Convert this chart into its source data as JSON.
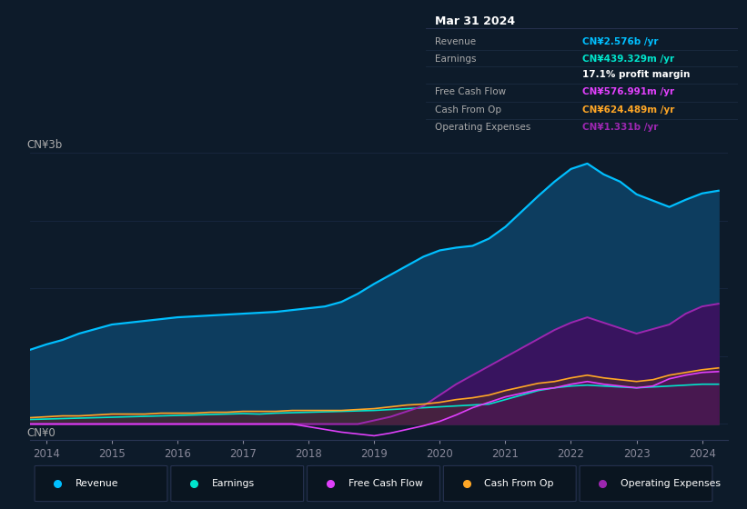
{
  "bg_color": "#0d1b2a",
  "title": "Mar 31 2024",
  "ylabel_top": "CN¥3b",
  "ylabel_bottom": "CN¥0",
  "x_ticks": [
    2014,
    2015,
    2016,
    2017,
    2018,
    2019,
    2020,
    2021,
    2022,
    2023,
    2024
  ],
  "legend": [
    {
      "label": "Revenue",
      "color": "#00bfff"
    },
    {
      "label": "Earnings",
      "color": "#00e5cc"
    },
    {
      "label": "Free Cash Flow",
      "color": "#e040fb"
    },
    {
      "label": "Cash From Op",
      "color": "#ffa726"
    },
    {
      "label": "Operating Expenses",
      "color": "#9c27b0"
    }
  ],
  "years": [
    2013.75,
    2014.0,
    2014.25,
    2014.5,
    2014.75,
    2015.0,
    2015.25,
    2015.5,
    2015.75,
    2016.0,
    2016.25,
    2016.5,
    2016.75,
    2017.0,
    2017.25,
    2017.5,
    2017.75,
    2018.0,
    2018.25,
    2018.5,
    2018.75,
    2019.0,
    2019.25,
    2019.5,
    2019.75,
    2020.0,
    2020.25,
    2020.5,
    2020.75,
    2021.0,
    2021.25,
    2021.5,
    2021.75,
    2022.0,
    2022.25,
    2022.5,
    2022.75,
    2023.0,
    2023.25,
    2023.5,
    2023.75,
    2024.0,
    2024.25
  ],
  "revenue": [
    0.82,
    0.88,
    0.93,
    1.0,
    1.05,
    1.1,
    1.12,
    1.14,
    1.16,
    1.18,
    1.19,
    1.2,
    1.21,
    1.22,
    1.23,
    1.24,
    1.26,
    1.28,
    1.3,
    1.35,
    1.44,
    1.55,
    1.65,
    1.75,
    1.85,
    1.92,
    1.95,
    1.97,
    2.05,
    2.18,
    2.35,
    2.52,
    2.68,
    2.82,
    2.88,
    2.76,
    2.68,
    2.54,
    2.47,
    2.4,
    2.48,
    2.55,
    2.58
  ],
  "earnings": [
    0.05,
    0.055,
    0.06,
    0.065,
    0.07,
    0.075,
    0.08,
    0.085,
    0.09,
    0.095,
    0.1,
    0.105,
    0.11,
    0.115,
    0.11,
    0.12,
    0.125,
    0.13,
    0.135,
    0.14,
    0.145,
    0.15,
    0.16,
    0.17,
    0.18,
    0.19,
    0.2,
    0.21,
    0.22,
    0.27,
    0.32,
    0.37,
    0.4,
    0.42,
    0.43,
    0.42,
    0.41,
    0.4,
    0.41,
    0.42,
    0.43,
    0.44,
    0.44
  ],
  "free_cash_flow": [
    0.0,
    0.0,
    0.0,
    0.0,
    0.0,
    0.0,
    0.0,
    0.0,
    0.0,
    0.0,
    0.0,
    0.0,
    0.0,
    0.0,
    0.0,
    0.0,
    0.0,
    -0.03,
    -0.06,
    -0.09,
    -0.11,
    -0.13,
    -0.1,
    -0.06,
    -0.02,
    0.03,
    0.1,
    0.18,
    0.24,
    0.3,
    0.34,
    0.38,
    0.4,
    0.44,
    0.47,
    0.44,
    0.42,
    0.4,
    0.42,
    0.5,
    0.54,
    0.57,
    0.58
  ],
  "cash_from_op": [
    0.07,
    0.08,
    0.09,
    0.09,
    0.1,
    0.11,
    0.11,
    0.11,
    0.12,
    0.12,
    0.12,
    0.13,
    0.13,
    0.14,
    0.14,
    0.14,
    0.15,
    0.15,
    0.15,
    0.15,
    0.16,
    0.17,
    0.19,
    0.21,
    0.22,
    0.24,
    0.27,
    0.29,
    0.32,
    0.37,
    0.41,
    0.45,
    0.47,
    0.51,
    0.54,
    0.51,
    0.49,
    0.47,
    0.49,
    0.54,
    0.57,
    0.6,
    0.62
  ],
  "operating_expenses": [
    0.0,
    0.0,
    0.0,
    0.0,
    0.0,
    0.0,
    0.0,
    0.0,
    0.0,
    0.0,
    0.0,
    0.0,
    0.0,
    0.0,
    0.0,
    0.0,
    0.0,
    0.0,
    0.0,
    0.0,
    0.0,
    0.04,
    0.08,
    0.14,
    0.2,
    0.32,
    0.44,
    0.54,
    0.64,
    0.74,
    0.84,
    0.94,
    1.04,
    1.12,
    1.18,
    1.12,
    1.06,
    1.0,
    1.05,
    1.1,
    1.22,
    1.3,
    1.33
  ],
  "info_rows": [
    {
      "label": "Revenue",
      "value": "CN¥2.576b /yr",
      "lcolor": "#aaaaaa",
      "vcolor": "#00bfff"
    },
    {
      "label": "Earnings",
      "value": "CN¥439.329m /yr",
      "lcolor": "#aaaaaa",
      "vcolor": "#00e5cc"
    },
    {
      "label": "",
      "value": "17.1% profit margin",
      "lcolor": "#aaaaaa",
      "vcolor": "#ffffff"
    },
    {
      "label": "Free Cash Flow",
      "value": "CN¥576.991m /yr",
      "lcolor": "#aaaaaa",
      "vcolor": "#e040fb"
    },
    {
      "label": "Cash From Op",
      "value": "CN¥624.489m /yr",
      "lcolor": "#aaaaaa",
      "vcolor": "#ffa726"
    },
    {
      "label": "Operating Expenses",
      "value": "CN¥1.331b /yr",
      "lcolor": "#aaaaaa",
      "vcolor": "#9c27b0"
    }
  ]
}
